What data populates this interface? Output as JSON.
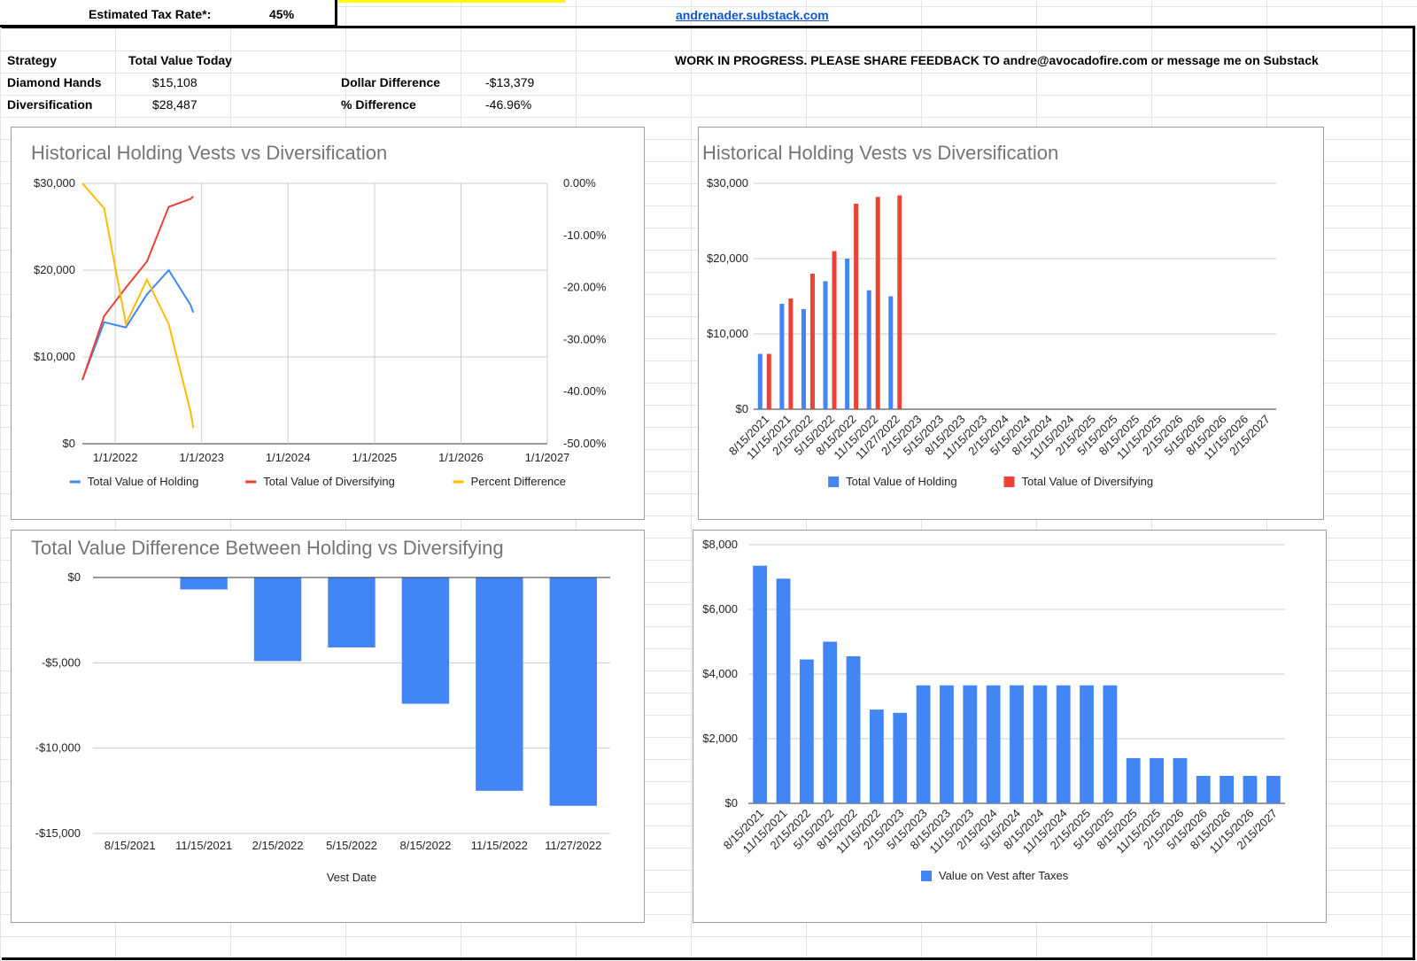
{
  "header": {
    "tax_label": "Estimated Tax Rate*:",
    "tax_value": "45%",
    "site_link": "andrenader.substack.com",
    "notice": "WORK IN PROGRESS. PLEASE SHARE FEEDBACK TO andre@avocadofire.com or message me on Substack"
  },
  "summary": {
    "col_strategy": "Strategy",
    "col_total": "Total Value Today",
    "rows": [
      {
        "label": "Diamond Hands",
        "value": "$15,108"
      },
      {
        "label": "Diversification",
        "value": "$28,487"
      }
    ],
    "diff_rows": [
      {
        "label": "Dollar Difference",
        "value": "-$13,379"
      },
      {
        "label": "% Difference",
        "value": "-46.96%"
      }
    ]
  },
  "colors": {
    "blue": "#4285f4",
    "red": "#ea4335",
    "yellow": "#fbbc04"
  },
  "chart_data": [
    {
      "id": "line-chart",
      "type": "line",
      "title": "Historical Holding Vests vs Diversification",
      "x": [
        "2021-08-15",
        "2021-11-15",
        "2022-02-15",
        "2022-05-15",
        "2022-08-15",
        "2022-11-15",
        "2022-11-27"
      ],
      "series": [
        {
          "name": "Total Value of Holding",
          "axis": "left",
          "color": "#4285f4",
          "values": [
            7350,
            14000,
            13400,
            17200,
            20000,
            16000,
            15108
          ]
        },
        {
          "name": "Total Value of Diversifying",
          "axis": "left",
          "color": "#ea4335",
          "values": [
            7350,
            14700,
            18000,
            21000,
            27300,
            28200,
            28487
          ]
        },
        {
          "name": "Percent Difference",
          "axis": "right",
          "color": "#fbbc04",
          "values": [
            0.0,
            -4.8,
            -27.0,
            -18.5,
            -27.0,
            -43.8,
            -46.96
          ]
        }
      ],
      "x_ticks": [
        "1/1/2022",
        "1/1/2023",
        "1/1/2024",
        "1/1/2025",
        "1/1/2026",
        "1/1/2027"
      ],
      "x_range": [
        "2021-08-15",
        "2027-01-01"
      ],
      "y_left_ticks": [
        "$0",
        "$10,000",
        "$20,000",
        "$30,000"
      ],
      "y_left_range": [
        0,
        30000
      ],
      "y_right_ticks": [
        "0.00%",
        "-10.00%",
        "-20.00%",
        "-30.00%",
        "-40.00%",
        "-50.00%"
      ],
      "y_right_range": [
        -50,
        0
      ],
      "legend": "bottom"
    },
    {
      "id": "grouped-bar-chart",
      "type": "bar",
      "title": "Historical Holding Vests vs Diversification",
      "categories": [
        "8/15/2021",
        "11/15/2021",
        "2/15/2022",
        "5/15/2022",
        "8/15/2022",
        "11/15/2022",
        "11/27/2022",
        "2/15/2023",
        "5/15/2023",
        "8/15/2023",
        "11/15/2023",
        "2/15/2024",
        "5/15/2024",
        "8/15/2024",
        "11/15/2024",
        "2/15/2025",
        "5/15/2025",
        "8/15/2025",
        "11/15/2025",
        "2/15/2026",
        "5/15/2026",
        "8/15/2026",
        "11/15/2026",
        "2/15/2027"
      ],
      "series": [
        {
          "name": "Total Value of Holding",
          "color": "#4285f4",
          "values": [
            7350,
            14000,
            13300,
            17000,
            20000,
            15800,
            15000,
            null,
            null,
            null,
            null,
            null,
            null,
            null,
            null,
            null,
            null,
            null,
            null,
            null,
            null,
            null,
            null,
            null
          ]
        },
        {
          "name": "Total Value of Diversifying",
          "color": "#ea4335",
          "values": [
            7350,
            14700,
            18000,
            21000,
            27300,
            28200,
            28400,
            null,
            null,
            null,
            null,
            null,
            null,
            null,
            null,
            null,
            null,
            null,
            null,
            null,
            null,
            null,
            null,
            null
          ]
        }
      ],
      "y_ticks": [
        "$0",
        "$10,000",
        "$20,000",
        "$30,000"
      ],
      "ylim": [
        0,
        30000
      ],
      "legend": "bottom"
    },
    {
      "id": "difference-bar-chart",
      "type": "bar",
      "title": "Total Value Difference Between Holding vs Diversifying",
      "categories": [
        "8/15/2021",
        "11/15/2021",
        "2/15/2022",
        "5/15/2022",
        "8/15/2022",
        "11/15/2022",
        "11/27/2022"
      ],
      "values": [
        0,
        -700,
        -4900,
        -4100,
        -7400,
        -12500,
        -13379
      ],
      "color": "#4285f4",
      "xlabel": "Vest Date",
      "y_ticks": [
        "$0",
        "-$5,000",
        "-$10,000",
        "-$15,000"
      ],
      "ylim": [
        -15000,
        0
      ]
    },
    {
      "id": "vest-bar-chart",
      "type": "bar",
      "title": "",
      "categories": [
        "8/15/2021",
        "11/15/2021",
        "2/15/2022",
        "5/15/2022",
        "8/15/2022",
        "11/15/2022",
        "2/15/2023",
        "5/15/2023",
        "8/15/2023",
        "11/15/2023",
        "2/15/2024",
        "5/15/2024",
        "8/15/2024",
        "11/15/2024",
        "2/15/2025",
        "5/15/2025",
        "8/15/2025",
        "11/15/2025",
        "2/15/2026",
        "5/15/2026",
        "8/15/2026",
        "11/15/2026",
        "2/15/2027"
      ],
      "series": [
        {
          "name": "Value on Vest after Taxes",
          "color": "#4285f4",
          "values": [
            7350,
            6950,
            4450,
            5000,
            4550,
            2900,
            2800,
            3650,
            3650,
            3650,
            3650,
            3650,
            3650,
            3650,
            3650,
            3650,
            1400,
            1400,
            1400,
            850,
            850,
            850,
            850
          ]
        }
      ],
      "y_ticks": [
        "$0",
        "$2,000",
        "$4,000",
        "$6,000",
        "$8,000"
      ],
      "ylim": [
        0,
        8000
      ],
      "legend": "bottom"
    }
  ]
}
